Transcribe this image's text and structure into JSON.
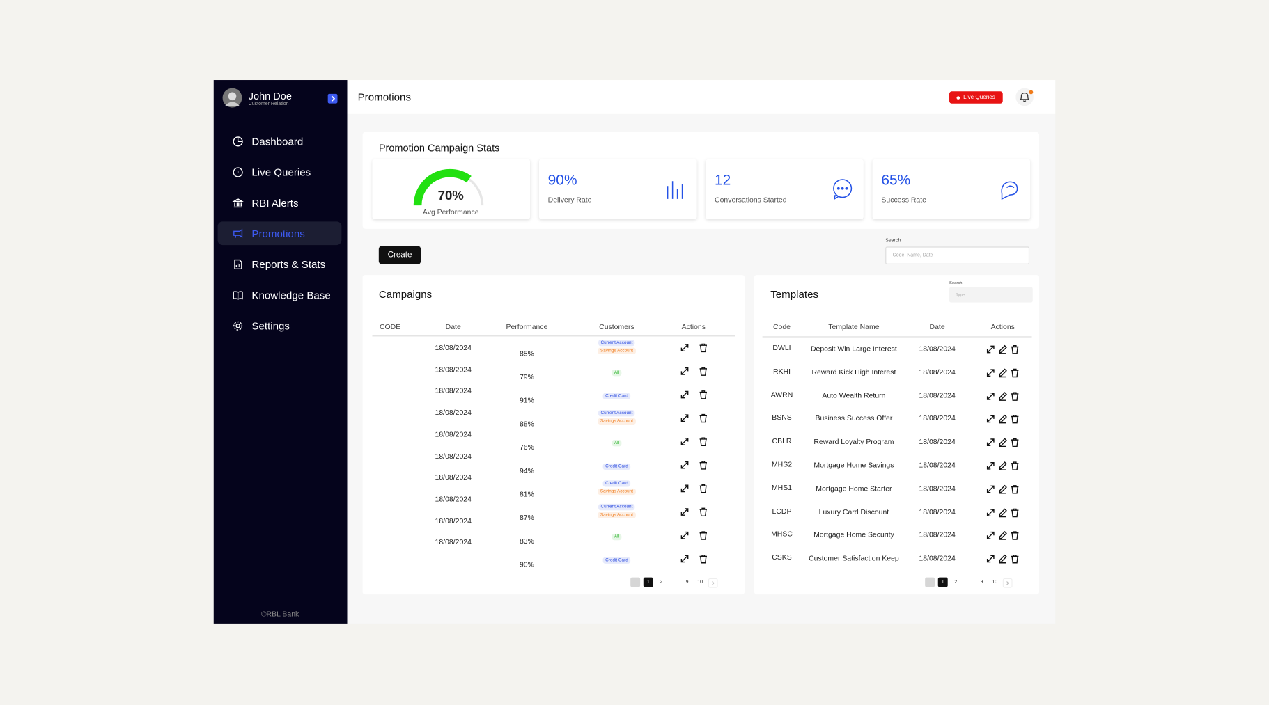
{
  "sidebar": {
    "user": {
      "name": "John Doe",
      "role": "Customer Relation"
    },
    "nav": [
      "Dashboard",
      "Live Queries",
      "RBI Alerts",
      "Promotions",
      "Reports & Stats",
      "Knowledge Base",
      "Settings"
    ],
    "active": 3,
    "footer": "©RBL Bank"
  },
  "header": {
    "title": "Promotions",
    "live_button": "Live Queries"
  },
  "stats": {
    "title": "Promotion Campaign Stats",
    "gauge": {
      "value": 70,
      "value_label": "70%",
      "label": "Avg Performance",
      "color": "#22e011"
    },
    "cards": [
      {
        "value": "90%",
        "label": "Delivery Rate"
      },
      {
        "value": "12",
        "label": "Conversations Started"
      },
      {
        "value": "65%",
        "label": "Success Rate"
      }
    ]
  },
  "toolbar": {
    "create": "Create",
    "search_label": "Search",
    "search_placeholder": "Code, Name, Date"
  },
  "campaigns": {
    "title": "Campaigns",
    "columns": [
      "CODE",
      "Date",
      "Performance",
      "Customers",
      "Actions"
    ],
    "rows": [
      {
        "date": "18/08/2024",
        "performance": "85%",
        "customers": [
          {
            "label": "Current Account",
            "color": "#2d4de0"
          },
          {
            "label": "Savings Account",
            "color": "#f07b1a"
          }
        ]
      },
      {
        "date": "18/08/2024",
        "performance": "79%",
        "customers": [
          {
            "label": "All",
            "color": "#2bb52b"
          }
        ]
      },
      {
        "date": "18/08/2024",
        "performance": "91%",
        "customers": [
          {
            "label": "Credit Card",
            "color": "#2d4de0"
          }
        ]
      },
      {
        "date": "18/08/2024",
        "performance": "88%",
        "customers": [
          {
            "label": "Current Account",
            "color": "#2d4de0"
          },
          {
            "label": "Savings Account",
            "color": "#f07b1a"
          }
        ]
      },
      {
        "date": "18/08/2024",
        "performance": "76%",
        "customers": [
          {
            "label": "All",
            "color": "#2bb52b"
          }
        ]
      },
      {
        "date": "18/08/2024",
        "performance": "94%",
        "customers": [
          {
            "label": "Credit Card",
            "color": "#2d4de0"
          }
        ]
      },
      {
        "date": "18/08/2024",
        "performance": "81%",
        "customers": [
          {
            "label": "Credit Card",
            "color": "#2d4de0"
          },
          {
            "label": "Savings Account",
            "color": "#f07b1a"
          }
        ]
      },
      {
        "date": "18/08/2024",
        "performance": "87%",
        "customers": [
          {
            "label": "Current Account",
            "color": "#2d4de0"
          },
          {
            "label": "Savings Account",
            "color": "#f07b1a"
          }
        ]
      },
      {
        "date": "18/08/2024",
        "performance": "83%",
        "customers": [
          {
            "label": "All",
            "color": "#2bb52b"
          }
        ]
      },
      {
        "date": "18/08/2024",
        "performance": "90%",
        "customers": [
          {
            "label": "Credit Card",
            "color": "#2d4de0"
          }
        ]
      }
    ],
    "pagination": [
      "1",
      "2",
      "...",
      "9",
      "10"
    ]
  },
  "templates": {
    "title": "Templates",
    "search_label": "Search",
    "search_placeholder": "Type",
    "columns": [
      "Code",
      "Template Name",
      "Date",
      "Actions"
    ],
    "rows": [
      {
        "code": "DWLI",
        "name": "Deposit Win Large Interest",
        "date": "18/08/2024"
      },
      {
        "code": "RKHI",
        "name": "Reward Kick High Interest",
        "date": "18/08/2024"
      },
      {
        "code": "AWRN",
        "name": "Auto Wealth Return",
        "date": "18/08/2024"
      },
      {
        "code": "BSNS",
        "name": "Business Success Offer",
        "date": "18/08/2024"
      },
      {
        "code": "CBLR",
        "name": "Reward Loyalty Program",
        "date": "18/08/2024"
      },
      {
        "code": "MHS2",
        "name": "Mortgage Home Savings",
        "date": "18/08/2024"
      },
      {
        "code": "MHS1",
        "name": "Mortgage Home Starter",
        "date": "18/08/2024"
      },
      {
        "code": "LCDP",
        "name": "Luxury Card Discount",
        "date": "18/08/2024"
      },
      {
        "code": "MHSC",
        "name": "Mortgage Home Security",
        "date": "18/08/2024"
      },
      {
        "code": "CSKS",
        "name": "Customer Satisfaction Keep",
        "date": "18/08/2024"
      }
    ],
    "pagination": [
      "1",
      "2",
      "...",
      "9",
      "10"
    ]
  }
}
